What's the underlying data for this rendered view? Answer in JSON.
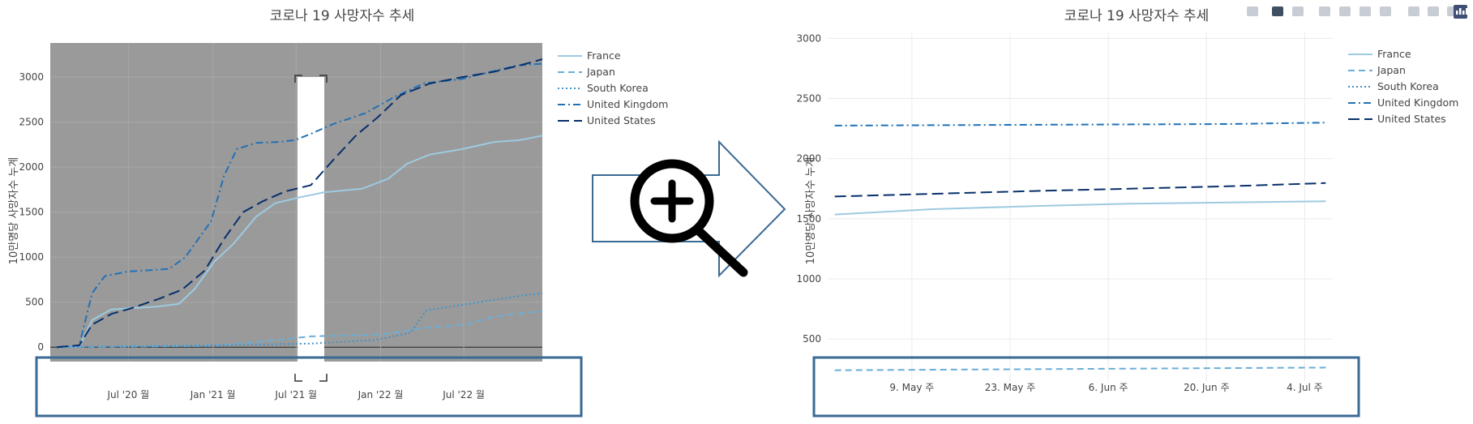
{
  "left_chart": {
    "title": "코로나 19 사망자수 추세",
    "ylabel": "10만명당 사망자수 누계"
  },
  "right_chart": {
    "title": "코로나 19 사망자수 추세",
    "ylabel": "10만명당 사망자수 누계"
  },
  "modebar": {
    "icons": [
      "camera-icon",
      "zoom-icon",
      "pan-icon",
      "zoom-in-icon",
      "zoom-out-icon",
      "autoscale-icon",
      "reset-axes-icon",
      "spike-lines-icon",
      "hover-closest-icon",
      "hover-compare-icon",
      "plotly-logo-icon"
    ],
    "active": "zoom-icon"
  },
  "colors": {
    "France": "#9ecae1",
    "Japan": "#6baed6",
    "South Korea": "#4292c6",
    "United Kingdom": "#2171b5",
    "United States": "#08306b",
    "overlay": "#9a9a9a",
    "highlight_box": "#3b6a94"
  },
  "chart_data": [
    {
      "type": "line",
      "title": "코로나 19 사망자수 추세",
      "xlabel": "",
      "ylabel": "10만명당 사망자수 누계",
      "x_tick_labels": [
        "Jul '20 월",
        "Jan '21 월",
        "Jul '21 월",
        "Jan '22 월",
        "Jul '22 월"
      ],
      "y_ticks": [
        0,
        500,
        1000,
        1500,
        2000,
        2500,
        3000
      ],
      "xlim": [
        "2020-01-13",
        "2022-12-19"
      ],
      "ylim": [
        -160,
        3380
      ],
      "grid": true,
      "legend": "right",
      "selection": [
        "2021-06-28",
        "2021-08-02"
      ],
      "series": [
        {
          "name": "France",
          "dash": "solid",
          "x": [
            "2020-01-27",
            "2020-03-16",
            "2020-04-13",
            "2020-05-25",
            "2020-08-31",
            "2020-10-19",
            "2020-11-23",
            "2021-01-04",
            "2021-02-15",
            "2021-04-05",
            "2021-05-17",
            "2021-07-05",
            "2021-08-30",
            "2021-11-22",
            "2022-01-17",
            "2022-02-28",
            "2022-04-18",
            "2022-06-27",
            "2022-09-05",
            "2022-10-31",
            "2022-12-19"
          ],
          "y": [
            0,
            5,
            300,
            420,
            450,
            480,
            650,
            950,
            1150,
            1450,
            1600,
            1660,
            1720,
            1760,
            1870,
            2040,
            2140,
            2200,
            2280,
            2300,
            2350
          ]
        },
        {
          "name": "Japan",
          "dash": "dash",
          "x": [
            "2020-01-27",
            "2020-12-28",
            "2021-03-01",
            "2021-06-07",
            "2021-08-02",
            "2021-12-27",
            "2022-01-31",
            "2022-03-28",
            "2022-07-04",
            "2022-08-29",
            "2022-10-03",
            "2022-12-19"
          ],
          "y": [
            0,
            15,
            40,
            90,
            120,
            140,
            160,
            210,
            250,
            330,
            360,
            400
          ]
        },
        {
          "name": "South Korea",
          "dash": "dot",
          "x": [
            "2020-01-27",
            "2021-01-04",
            "2021-08-02",
            "2021-12-20",
            "2022-03-07",
            "2022-04-11",
            "2022-06-27",
            "2022-08-29",
            "2022-10-31",
            "2022-12-19"
          ],
          "y": [
            0,
            20,
            40,
            80,
            160,
            410,
            470,
            520,
            570,
            600
          ]
        },
        {
          "name": "United Kingdom",
          "dash": "dashdot",
          "x": [
            "2020-01-27",
            "2020-03-16",
            "2020-04-13",
            "2020-05-11",
            "2020-06-29",
            "2020-09-28",
            "2020-11-02",
            "2020-12-28",
            "2021-01-25",
            "2021-02-22",
            "2021-04-05",
            "2021-05-24",
            "2021-06-28",
            "2021-08-02",
            "2021-09-20",
            "2021-11-29",
            "2022-01-31",
            "2022-04-04",
            "2022-06-27",
            "2022-08-29",
            "2022-10-24",
            "2022-12-19"
          ],
          "y": [
            0,
            20,
            600,
            790,
            840,
            870,
            1000,
            1400,
            1900,
            2200,
            2270,
            2280,
            2300,
            2370,
            2480,
            2600,
            2780,
            2930,
            2980,
            3060,
            3130,
            3150
          ]
        },
        {
          "name": "United States",
          "dash": "longdash",
          "x": [
            "2020-01-27",
            "2020-03-16",
            "2020-04-13",
            "2020-05-25",
            "2020-07-06",
            "2020-09-07",
            "2020-10-26",
            "2020-12-14",
            "2021-01-25",
            "2021-03-08",
            "2021-04-19",
            "2021-06-07",
            "2021-08-02",
            "2021-09-20",
            "2021-11-08",
            "2021-12-27",
            "2022-02-14",
            "2022-04-18",
            "2022-06-27",
            "2022-09-05",
            "2022-11-07",
            "2022-12-19"
          ],
          "y": [
            0,
            20,
            250,
            370,
            430,
            540,
            640,
            850,
            1200,
            1500,
            1620,
            1730,
            1800,
            2080,
            2350,
            2560,
            2800,
            2930,
            3000,
            3060,
            3140,
            3200
          ]
        }
      ]
    },
    {
      "type": "line",
      "title": "코로나 19 사망자수 추세",
      "xlabel": "",
      "ylabel": "10만명당 사망자수 누계",
      "x_tick_labels": [
        "9. May 주",
        "23. May 주",
        "6. Jun 주",
        "20. Jun 주",
        "4. Jul 주"
      ],
      "y_ticks": [
        500,
        1000,
        1500,
        2000,
        2500,
        3000
      ],
      "xlim": [
        "2021-04-27",
        "2021-07-08"
      ],
      "ylim": [
        150,
        3050
      ],
      "grid": true,
      "legend": "top-right",
      "series": [
        {
          "name": "France",
          "dash": "solid",
          "x": [
            "2021-04-28",
            "2021-05-12",
            "2021-05-26",
            "2021-06-09",
            "2021-06-23",
            "2021-07-07"
          ],
          "y": [
            1535,
            1580,
            1605,
            1625,
            1635,
            1645
          ]
        },
        {
          "name": "Japan",
          "dash": "dash",
          "x": [
            "2021-04-28",
            "2021-07-07"
          ],
          "y": [
            240,
            262
          ]
        },
        {
          "name": "United Kingdom",
          "dash": "dashdot",
          "x": [
            "2021-04-28",
            "2021-05-26",
            "2021-06-23",
            "2021-07-07"
          ],
          "y": [
            2275,
            2282,
            2288,
            2300
          ]
        },
        {
          "name": "United States",
          "dash": "longdash",
          "x": [
            "2021-04-28",
            "2021-05-26",
            "2021-06-23",
            "2021-07-07"
          ],
          "y": [
            1685,
            1730,
            1770,
            1797
          ]
        }
      ]
    }
  ]
}
